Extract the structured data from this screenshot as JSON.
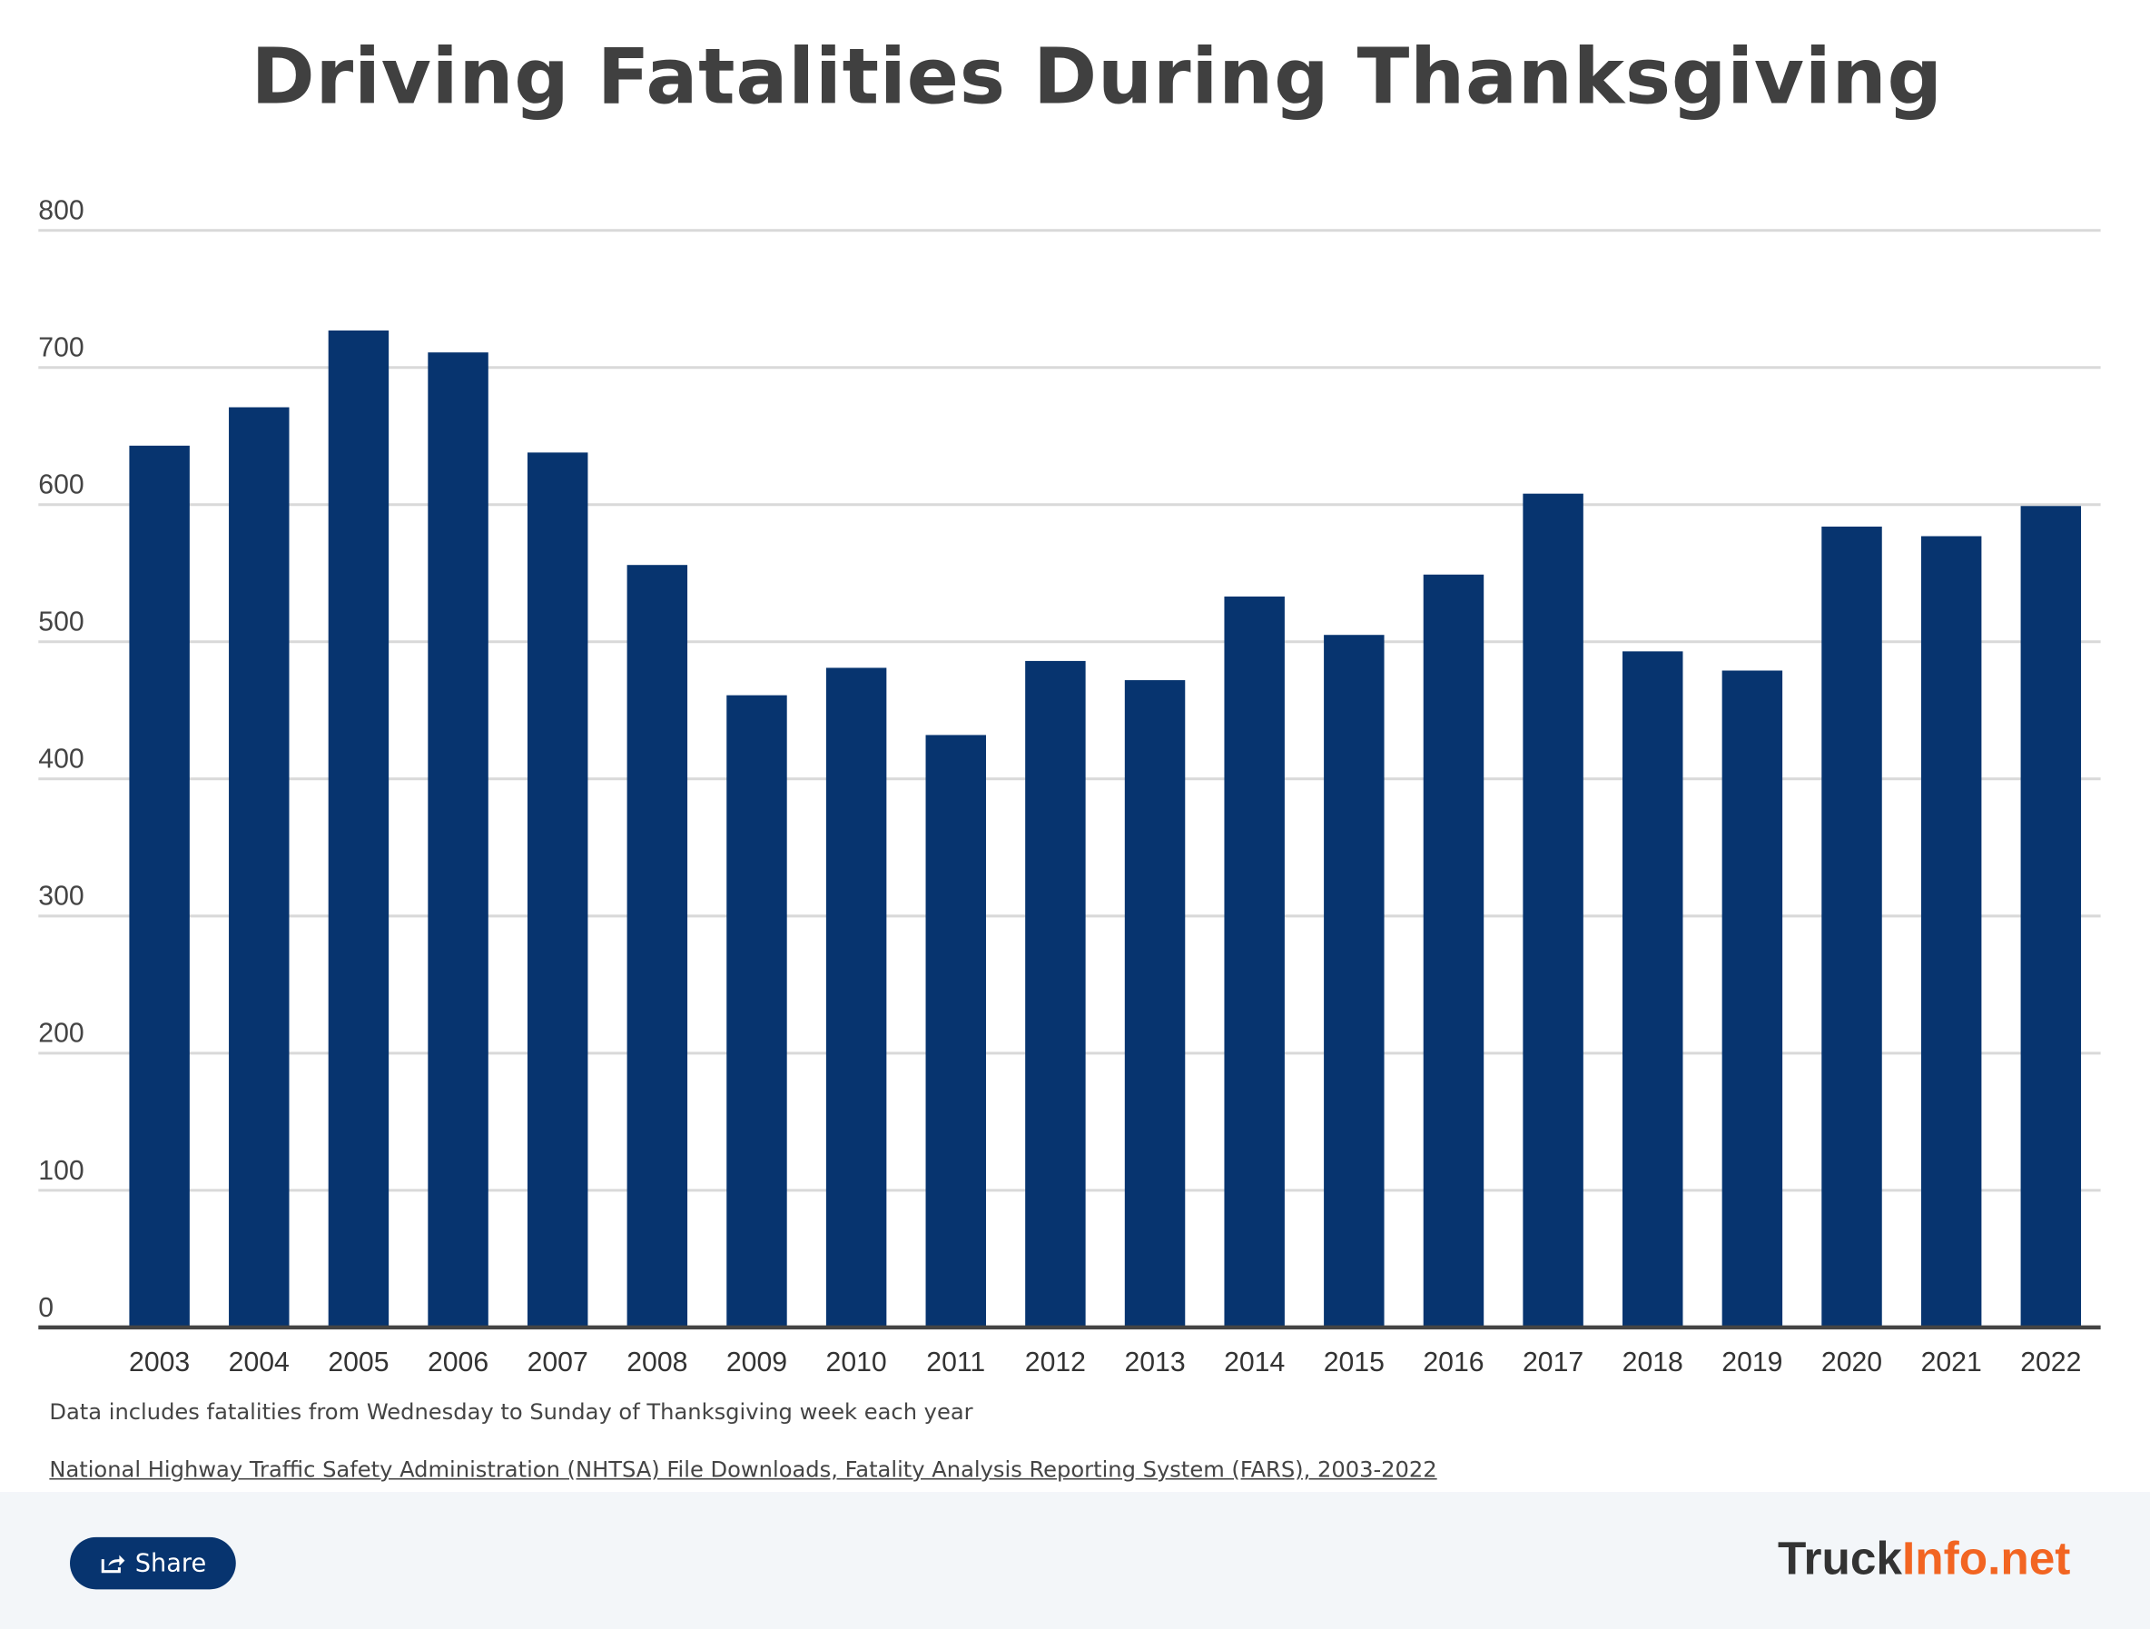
{
  "chart_data": {
    "type": "bar",
    "title": "Driving Fatalities During Thanksgiving",
    "categories": [
      "2003",
      "2004",
      "2005",
      "2006",
      "2007",
      "2008",
      "2009",
      "2010",
      "2011",
      "2012",
      "2013",
      "2014",
      "2015",
      "2016",
      "2017",
      "2018",
      "2019",
      "2020",
      "2021",
      "2022"
    ],
    "values": [
      643,
      671,
      727,
      711,
      638,
      556,
      461,
      481,
      432,
      486,
      472,
      533,
      505,
      549,
      608,
      493,
      479,
      584,
      577,
      599
    ],
    "ylim": [
      0,
      800
    ],
    "yticks": [
      0,
      100,
      200,
      300,
      400,
      500,
      600,
      700,
      800
    ],
    "xlabel": "",
    "ylabel": "",
    "grid": true,
    "bar_color": "#07346f"
  },
  "notes": {
    "description": "Data includes fatalities from Wednesday to Sunday of Thanksgiving week each year",
    "source": "National Highway Traffic Safety Administration (NHTSA) File Downloads, Fatality Analysis Reporting System (FARS), 2003-2022"
  },
  "footer": {
    "share_label": "Share",
    "share_icon": "share-icon",
    "logo_part1": "Truck",
    "logo_part2": "Info.net",
    "logo_colors": {
      "dark": "#333333",
      "accent": "#f26522"
    }
  }
}
